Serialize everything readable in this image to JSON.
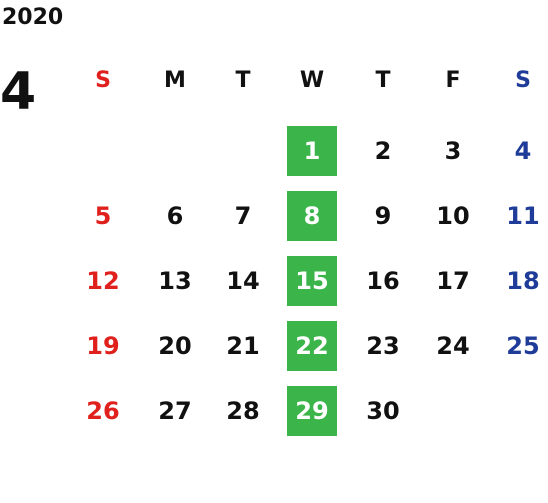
{
  "year": "2020",
  "month": "4",
  "weekdays": [
    "S",
    "M",
    "T",
    "W",
    "T",
    "F",
    "S"
  ],
  "weeks": [
    [
      null,
      null,
      null,
      1,
      2,
      3,
      4
    ],
    [
      5,
      6,
      7,
      8,
      9,
      10,
      11
    ],
    [
      12,
      13,
      14,
      15,
      16,
      17,
      18
    ],
    [
      19,
      20,
      21,
      22,
      23,
      24,
      25
    ],
    [
      26,
      27,
      28,
      29,
      30,
      null,
      null
    ]
  ]
}
